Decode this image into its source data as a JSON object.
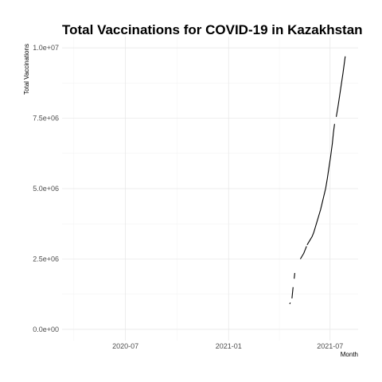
{
  "chart_data": {
    "type": "line",
    "title": "Total Vaccinations for COVID-19 in Kazakhstan",
    "xlabel": "Month",
    "ylabel": "Total Vaccinations",
    "xlim": [
      "2020-03-10",
      "2021-08-20"
    ],
    "ylim": [
      -400000,
      10400000
    ],
    "x_ticks": [
      {
        "date": "2020-07-01",
        "label": "2020-07"
      },
      {
        "date": "2021-01-01",
        "label": "2021-01"
      },
      {
        "date": "2021-07-01",
        "label": "2021-07"
      }
    ],
    "y_ticks": [
      {
        "value": 0,
        "label": "0.0e+00"
      },
      {
        "value": 2500000,
        "label": "2.5e+06"
      },
      {
        "value": 5000000,
        "label": "5.0e+06"
      },
      {
        "value": 7500000,
        "label": "7.5e+06"
      },
      {
        "value": 10000000,
        "label": "1.0e+07"
      }
    ],
    "grid": true,
    "series_segments": [
      [
        [
          "2021-04-20",
          900000
        ],
        [
          "2021-04-21",
          950000
        ]
      ],
      [
        [
          "2021-04-24",
          1100000
        ],
        [
          "2021-04-26",
          1500000
        ]
      ],
      [
        [
          "2021-04-28",
          1800000
        ],
        [
          "2021-04-29",
          2000000
        ]
      ],
      [
        [
          "2021-05-09",
          2500000
        ],
        [
          "2021-05-12",
          2600000
        ],
        [
          "2021-05-15",
          2700000
        ],
        [
          "2021-05-18",
          2850000
        ],
        [
          "2021-05-20",
          2950000
        ]
      ],
      [
        [
          "2021-05-21",
          3000000
        ],
        [
          "2021-05-24",
          3100000
        ],
        [
          "2021-05-27",
          3200000
        ],
        [
          "2021-05-30",
          3300000
        ],
        [
          "2021-06-02",
          3450000
        ],
        [
          "2021-06-05",
          3650000
        ],
        [
          "2021-06-08",
          3850000
        ],
        [
          "2021-06-11",
          4050000
        ],
        [
          "2021-06-14",
          4250000
        ],
        [
          "2021-06-17",
          4500000
        ],
        [
          "2021-06-20",
          4750000
        ],
        [
          "2021-06-23",
          5000000
        ],
        [
          "2021-06-26",
          5350000
        ],
        [
          "2021-06-29",
          5750000
        ],
        [
          "2021-07-02",
          6150000
        ],
        [
          "2021-07-05",
          6600000
        ],
        [
          "2021-07-07",
          7000000
        ],
        [
          "2021-07-09",
          7300000
        ]
      ],
      [
        [
          "2021-07-12",
          7550000
        ],
        [
          "2021-07-15",
          7900000
        ],
        [
          "2021-07-18",
          8300000
        ],
        [
          "2021-07-21",
          8700000
        ],
        [
          "2021-07-24",
          9100000
        ],
        [
          "2021-07-26",
          9400000
        ],
        [
          "2021-07-28",
          9700000
        ]
      ]
    ]
  }
}
